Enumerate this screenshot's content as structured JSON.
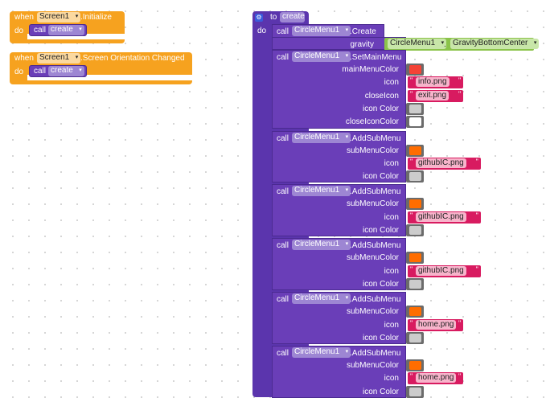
{
  "events": [
    {
      "when": "when",
      "component": "Screen1",
      "event": ".Initialize",
      "do": "do",
      "call": "call",
      "procedure": "create"
    },
    {
      "when": "when",
      "component": "Screen1",
      "event": ".Screen Orientation Changed",
      "do": "do",
      "call": "call",
      "procedure": "create"
    }
  ],
  "procedure": {
    "to": "to",
    "name": "create",
    "do": "do",
    "create_call": {
      "call": "call",
      "component": "CircleMenu1",
      "method": ".Create",
      "param": "gravity",
      "value_component": "CircleMenu1",
      "dot": ".",
      "value_property": "GravityBottomCenter"
    },
    "calls": [
      {
        "call": "call",
        "component": "CircleMenu1",
        "method": ".SetMainMenu",
        "params": [
          {
            "label": "mainMenuColor",
            "type": "color",
            "color": "#f44336"
          },
          {
            "label": "icon",
            "type": "text",
            "value": "info.png"
          },
          {
            "label": "closeIcon",
            "type": "text",
            "value": "exit.png"
          },
          {
            "label": "icon Color",
            "type": "color",
            "color": "#cccccc"
          },
          {
            "label": "closeIconColor",
            "type": "color",
            "color": "#ffffff"
          }
        ]
      },
      {
        "call": "call",
        "component": "CircleMenu1",
        "method": ".AddSubMenu",
        "params": [
          {
            "label": "subMenuColor",
            "type": "color",
            "color": "#ff6d00"
          },
          {
            "label": "icon",
            "type": "text",
            "value": "githubIC.png"
          },
          {
            "label": "icon Color",
            "type": "color",
            "color": "#cccccc"
          }
        ]
      },
      {
        "call": "call",
        "component": "CircleMenu1",
        "method": ".AddSubMenu",
        "params": [
          {
            "label": "subMenuColor",
            "type": "color",
            "color": "#ff6d00"
          },
          {
            "label": "icon",
            "type": "text",
            "value": "githubIC.png"
          },
          {
            "label": "icon Color",
            "type": "color",
            "color": "#cccccc"
          }
        ]
      },
      {
        "call": "call",
        "component": "CircleMenu1",
        "method": ".AddSubMenu",
        "params": [
          {
            "label": "subMenuColor",
            "type": "color",
            "color": "#ff6d00"
          },
          {
            "label": "icon",
            "type": "text",
            "value": "githubIC.png"
          },
          {
            "label": "icon Color",
            "type": "color",
            "color": "#cccccc"
          }
        ]
      },
      {
        "call": "call",
        "component": "CircleMenu1",
        "method": ".AddSubMenu",
        "params": [
          {
            "label": "subMenuColor",
            "type": "color",
            "color": "#ff6d00"
          },
          {
            "label": "icon",
            "type": "text",
            "value": "home.png"
          },
          {
            "label": "icon Color",
            "type": "color",
            "color": "#cccccc"
          }
        ]
      },
      {
        "call": "call",
        "component": "CircleMenu1",
        "method": ".AddSubMenu",
        "params": [
          {
            "label": "subMenuColor",
            "type": "color",
            "color": "#ff6d00"
          },
          {
            "label": "icon",
            "type": "text",
            "value": "home.png"
          },
          {
            "label": "icon Color",
            "type": "color",
            "color": "#cccccc"
          }
        ]
      }
    ]
  }
}
